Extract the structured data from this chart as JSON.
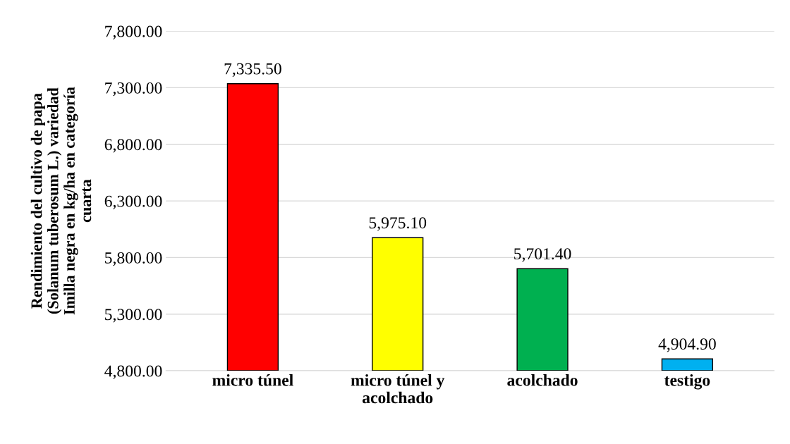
{
  "chart_data": {
    "type": "bar",
    "ylabel": "Rendimiento del cultivo de papa\n(Solanum tuberosum L.) variedad\nImilla negra en kg/ha en categoría\ncuarta",
    "categories": [
      "micro túnel",
      "micro túnel y\nacolchado",
      "acolchado",
      "testigo"
    ],
    "values": [
      7335.5,
      5975.1,
      5701.4,
      4904.9
    ],
    "colors": [
      "#ff0000",
      "#ffff00",
      "#00b050",
      "#00b0f0"
    ],
    "value_labels": [
      "7,335.50",
      "5,975.10",
      "5,701.40",
      "4,904.90"
    ],
    "ylim": [
      4800,
      7800
    ],
    "yticks": [
      {
        "value": 4800,
        "label": "4,800.00"
      },
      {
        "value": 5300,
        "label": "5,300.00"
      },
      {
        "value": 5800,
        "label": "5,800.00"
      },
      {
        "value": 6300,
        "label": "6,300.00"
      },
      {
        "value": 6800,
        "label": "6,800.00"
      },
      {
        "value": 7300,
        "label": "7,300.00"
      },
      {
        "value": 7800,
        "label": "7,800.00"
      }
    ],
    "grid": "y"
  }
}
